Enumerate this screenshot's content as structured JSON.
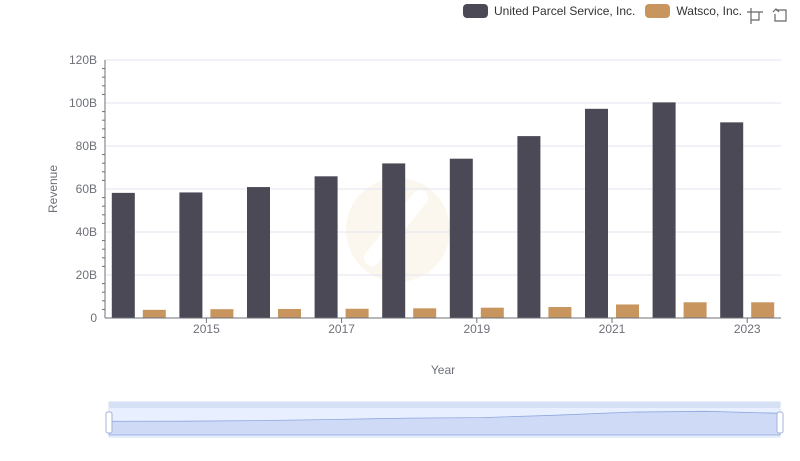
{
  "legend": {
    "items": [
      {
        "label": "United Parcel Service, Inc.",
        "color": "#4a4955"
      },
      {
        "label": "Watsco, Inc.",
        "color": "#c8955f"
      }
    ]
  },
  "toolbox": {
    "zoom_icon": "zoom-select-icon",
    "restore_icon": "restore-icon"
  },
  "chart_data": {
    "type": "bar",
    "x": [
      2014,
      2015,
      2016,
      2017,
      2018,
      2019,
      2020,
      2021,
      2022,
      2023
    ],
    "x_tick_labels": [
      "2015",
      "2017",
      "2019",
      "2021",
      "2023"
    ],
    "xlabel": "Year",
    "ylabel": "Revenue",
    "ylim": [
      0,
      120000000000
    ],
    "y_tick_labels": [
      "0",
      "20B",
      "40B",
      "60B",
      "80B",
      "100B",
      "120B"
    ],
    "grid": true,
    "legend_position": "top-right",
    "series": [
      {
        "name": "United Parcel Service, Inc.",
        "color": "#4a4955",
        "values": [
          58200000000,
          58400000000,
          60900000000,
          65900000000,
          71900000000,
          74100000000,
          84600000000,
          97300000000,
          100300000000,
          91000000000
        ]
      },
      {
        "name": "Watsco, Inc.",
        "color": "#c8955f",
        "values": [
          3800000000,
          4100000000,
          4200000000,
          4300000000,
          4500000000,
          4800000000,
          5100000000,
          6300000000,
          7300000000,
          7300000000
        ]
      }
    ]
  }
}
